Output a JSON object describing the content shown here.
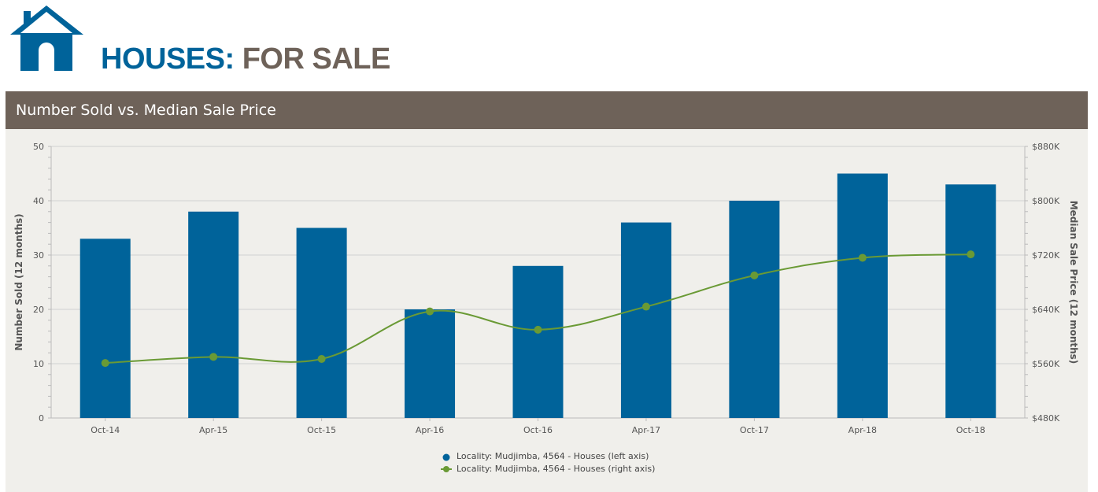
{
  "header": {
    "logo_name": "house-logo",
    "title_part1": "HOUSES:",
    "title_part2": "FOR SALE"
  },
  "colors": {
    "brand_blue": "#00639a",
    "brand_brown": "#6e6259",
    "line_green": "#6a9a35",
    "panel_bg": "#f0efeb"
  },
  "chart_data": {
    "type": "bar",
    "title": "Number Sold vs. Median Sale Price",
    "categories": [
      "Oct-14",
      "Apr-15",
      "Oct-15",
      "Apr-16",
      "Oct-16",
      "Apr-17",
      "Oct-17",
      "Apr-18",
      "Oct-18"
    ],
    "series": [
      {
        "name": "Locality: Mudjimba, 4564 - Houses (left axis)",
        "type": "bar",
        "axis": "left",
        "values": [
          33,
          38,
          35,
          20,
          28,
          36,
          40,
          45,
          43
        ]
      },
      {
        "name": "Locality: Mudjimba, 4564 - Houses (right axis)",
        "type": "line",
        "axis": "right",
        "values": [
          561000,
          570000,
          567000,
          637000,
          610000,
          644000,
          690000,
          716000,
          721000
        ]
      }
    ],
    "ylabel": "Number Sold (12 months)",
    "y2label": "Median Sale Price (12 months)",
    "ylim": [
      0,
      50
    ],
    "y2lim": [
      480000,
      880000
    ],
    "yticks": [
      "0",
      "10",
      "20",
      "30",
      "40",
      "50"
    ],
    "y2ticks": [
      "$480K",
      "$560K",
      "$640K",
      "$720K",
      "$800K",
      "$880K"
    ],
    "grid": true,
    "legend_position": "bottom-center"
  }
}
